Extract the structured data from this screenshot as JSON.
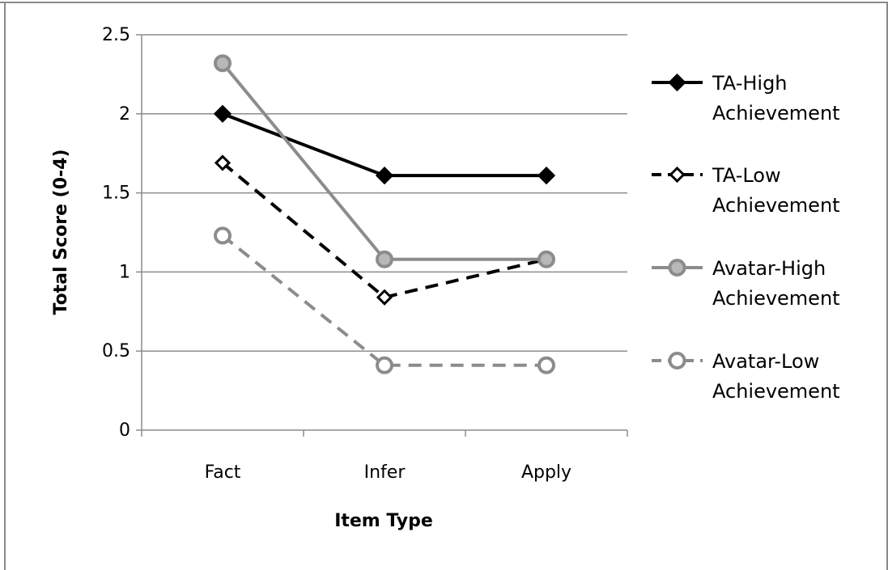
{
  "chart_data": {
    "type": "line",
    "title": "",
    "xlabel": "Item Type",
    "ylabel": "Total Score (0-4)",
    "categories": [
      "Fact",
      "Infer",
      "Apply"
    ],
    "ylim": [
      0,
      2.5
    ],
    "yticks": [
      "0",
      "0.5",
      "1",
      "1.5",
      "2",
      "2.5"
    ],
    "ytick_values": [
      0,
      0.5,
      1,
      1.5,
      2,
      2.5
    ],
    "grid": "horizontal",
    "legend_position": "right",
    "series": [
      {
        "name_lines": [
          "TA-High",
          "Achievement"
        ],
        "values": [
          2.0,
          1.61,
          1.61
        ],
        "color": "#000000",
        "line_style": "solid",
        "marker": "filled-diamond"
      },
      {
        "name_lines": [
          "TA-Low",
          "Achievement"
        ],
        "values": [
          1.69,
          0.84,
          1.08
        ],
        "color": "#000000",
        "line_style": "dashed",
        "marker": "open-diamond"
      },
      {
        "name_lines": [
          "Avatar-High",
          "Achievement"
        ],
        "values": [
          2.32,
          1.08,
          1.08
        ],
        "color": "#8c8c8c",
        "line_style": "solid",
        "marker": "filled-circle"
      },
      {
        "name_lines": [
          "Avatar-Low",
          "Achievement"
        ],
        "values": [
          1.23,
          0.41,
          0.41
        ],
        "color": "#8c8c8c",
        "line_style": "dashed",
        "marker": "open-circle"
      }
    ]
  }
}
